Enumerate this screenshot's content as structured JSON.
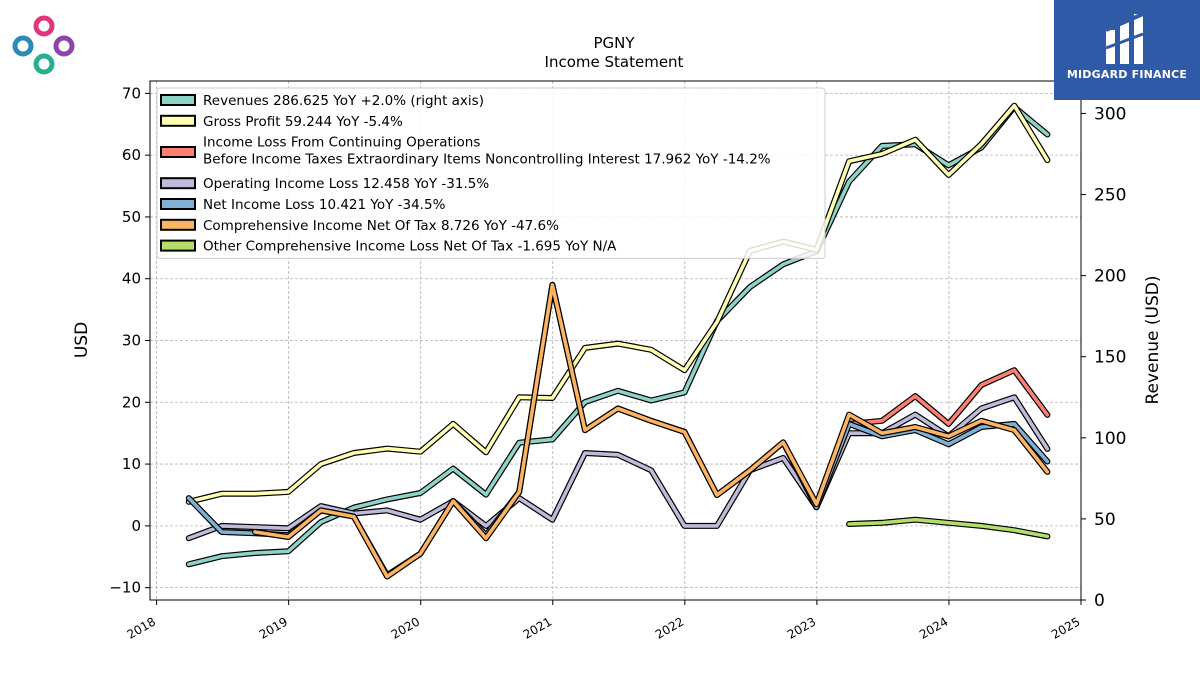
{
  "brand": {
    "name": "MIDGARD FINANCE"
  },
  "chart_data": {
    "type": "line",
    "title": "PGNY",
    "subtitle": "Income Statement",
    "ylabel": "USD",
    "ylabel_right": "Revenue (USD)",
    "ylim": [
      -12,
      72
    ],
    "ylim_right": [
      0,
      320
    ],
    "xlim": [
      2017.95,
      2025.0
    ],
    "grid": true,
    "legend_position": "top-left",
    "y_ticks": [
      -10,
      0,
      10,
      20,
      30,
      40,
      50,
      60,
      70
    ],
    "y_ticks_right": [
      0,
      50,
      100,
      150,
      200,
      250,
      300
    ],
    "x_ticks": [
      2018,
      2019,
      2020,
      2021,
      2022,
      2023,
      2024,
      2025
    ],
    "series": [
      {
        "name": "Revenues  286.625 YoY +2.0% (right axis)",
        "axis": "right",
        "color": "#8dd3c7",
        "x": [
          "2018-03-31",
          "2018-06-30",
          "2018-09-30",
          "2018-12-31",
          "2019-03-31",
          "2019-06-30",
          "2019-09-30",
          "2019-12-31",
          "2020-03-31",
          "2020-06-30",
          "2020-09-30",
          "2020-12-31",
          "2021-03-31",
          "2021-06-30",
          "2021-09-30",
          "2021-12-31",
          "2022-03-31",
          "2022-06-30",
          "2022-09-30",
          "2022-12-31",
          "2023-03-31",
          "2023-06-30",
          "2023-09-30",
          "2023-12-31",
          "2024-03-31",
          "2024-06-30",
          "2024-09-30"
        ],
        "values": [
          22,
          27,
          29,
          30,
          48,
          57,
          62,
          66,
          81,
          65,
          97,
          99,
          122,
          129,
          123,
          128,
          172,
          193,
          207,
          215,
          258,
          280,
          281,
          268,
          279,
          304,
          287
        ]
      },
      {
        "name": "Gross Profit  59.244 YoY -5.4%",
        "axis": "left",
        "color": "#ffffb3",
        "x": [
          "2018-03-31",
          "2018-06-30",
          "2018-09-30",
          "2018-12-31",
          "2019-03-31",
          "2019-06-30",
          "2019-09-30",
          "2019-12-31",
          "2020-03-31",
          "2020-06-30",
          "2020-09-30",
          "2020-12-31",
          "2021-03-31",
          "2021-06-30",
          "2021-09-30",
          "2021-12-31",
          "2022-03-31",
          "2022-06-30",
          "2022-09-30",
          "2022-12-31",
          "2023-03-31",
          "2023-06-30",
          "2023-09-30",
          "2023-12-31",
          "2024-03-31",
          "2024-06-30",
          "2024-09-30"
        ],
        "values": [
          3.9,
          5.2,
          5.2,
          5.5,
          10.0,
          11.8,
          12.5,
          12.0,
          16.5,
          11.9,
          20.8,
          20.7,
          28.8,
          29.5,
          28.5,
          25.2,
          33.0,
          44.5,
          46.0,
          44.7,
          59.0,
          60.2,
          62.5,
          56.8,
          61.8,
          68.0,
          59.2
        ]
      },
      {
        "name": "Income Loss From Continuing Operations\nBefore Income Taxes Extraordinary Items Noncontrolling Interest  17.962 YoY -14.2%",
        "axis": "left",
        "color": "#fb8072",
        "x": [
          "2023-03-31",
          "2023-06-30",
          "2023-09-30",
          "2023-12-31",
          "2024-03-31",
          "2024-06-30",
          "2024-09-30"
        ],
        "values": [
          16.5,
          17.0,
          21.0,
          16.5,
          22.8,
          25.2,
          17.96
        ]
      },
      {
        "name": "Operating Income Loss  12.458 YoY -31.5%",
        "axis": "left",
        "color": "#bebada",
        "x": [
          "2018-03-31",
          "2018-06-30",
          "2018-09-30",
          "2018-12-31",
          "2019-03-31",
          "2019-06-30",
          "2019-09-30",
          "2019-12-31",
          "2020-03-31",
          "2020-06-30",
          "2020-09-30",
          "2020-12-31",
          "2021-03-31",
          "2021-06-30",
          "2021-09-30",
          "2021-12-31",
          "2022-03-31",
          "2022-06-30",
          "2022-09-30",
          "2022-12-31",
          "2023-03-31",
          "2023-06-30",
          "2023-09-30",
          "2023-12-31",
          "2024-03-31",
          "2024-06-30",
          "2024-09-30"
        ],
        "values": [
          -2.0,
          0.0,
          -0.2,
          -0.4,
          3.2,
          2.0,
          2.5,
          1.0,
          4.0,
          0.0,
          4.5,
          1.0,
          11.8,
          11.5,
          9.0,
          0.0,
          0.0,
          9.0,
          11.0,
          3.0,
          15.0,
          15.0,
          18.0,
          14.5,
          19.0,
          20.8,
          12.46
        ]
      },
      {
        "name": "Net Income Loss  10.421 YoY -34.5%",
        "axis": "left",
        "color": "#80b1d3",
        "x": [
          "2018-03-31",
          "2018-06-30",
          "2018-09-30",
          "2018-12-31",
          "2019-03-31",
          "2019-06-30",
          "2019-09-30",
          "2019-12-31",
          "2020-03-31",
          "2020-06-30",
          "2020-09-30",
          "2020-12-31",
          "2021-03-31",
          "2021-06-30",
          "2021-09-30",
          "2021-12-31",
          "2022-03-31",
          "2022-06-30",
          "2022-09-30",
          "2022-12-31",
          "2023-03-31",
          "2023-06-30",
          "2023-09-30",
          "2023-12-31",
          "2024-03-31",
          "2024-06-30",
          "2024-09-30"
        ],
        "values": [
          4.5,
          -1.0,
          -1.2,
          -1.5,
          2.5,
          1.5,
          -8.0,
          -4.5,
          4.0,
          -1.5,
          5.5,
          39.0,
          15.5,
          19.0,
          17.0,
          15.2,
          5.0,
          9.0,
          13.5,
          3.0,
          16.5,
          14.5,
          15.5,
          13.2,
          16.0,
          16.5,
          10.42
        ]
      },
      {
        "name": "Comprehensive Income Net Of Tax  8.726 YoY -47.6%",
        "axis": "left",
        "color": "#fdb462",
        "x": [
          "2018-09-30",
          "2018-12-31",
          "2019-03-31",
          "2019-06-30",
          "2019-09-30",
          "2019-12-31",
          "2020-03-31",
          "2020-06-30",
          "2020-09-30",
          "2020-12-31",
          "2021-03-31",
          "2021-06-30",
          "2021-09-30",
          "2021-12-31",
          "2022-03-31",
          "2022-06-30",
          "2022-09-30",
          "2022-12-31",
          "2023-03-31",
          "2023-06-30",
          "2023-09-30",
          "2023-12-31",
          "2024-03-31",
          "2024-06-30",
          "2024-09-30"
        ],
        "values": [
          -1.0,
          -1.8,
          2.5,
          1.5,
          -8.2,
          -4.5,
          4.0,
          -2.0,
          5.5,
          39.0,
          15.5,
          19.0,
          17.0,
          15.2,
          5.0,
          9.0,
          13.5,
          3.5,
          18.0,
          15.0,
          16.0,
          14.5,
          17.0,
          15.5,
          8.73
        ]
      },
      {
        "name": "Other Comprehensive Income Loss Net Of Tax  -1.695 YoY N/A",
        "axis": "left",
        "color": "#b3de69",
        "x": [
          "2023-03-31",
          "2023-06-30",
          "2023-09-30",
          "2023-12-31",
          "2024-03-31",
          "2024-06-30",
          "2024-09-30"
        ],
        "values": [
          0.3,
          0.5,
          1.0,
          0.5,
          0.0,
          -0.7,
          -1.7
        ]
      }
    ]
  }
}
